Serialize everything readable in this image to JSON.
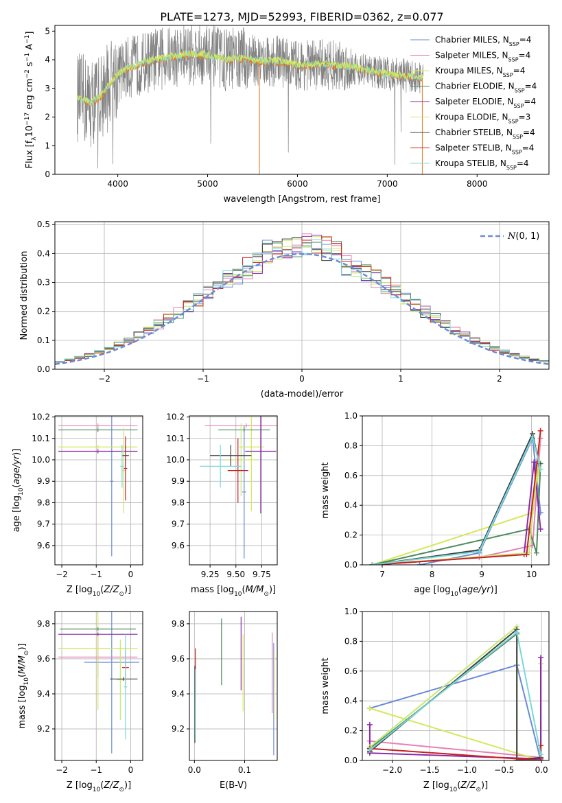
{
  "figure": {
    "title": "PLATE=1273, MJD=52993, FIBERID=0362, z=0.077"
  },
  "series_names": [
    "Chabrier MILES, N$_{SSP}$=4",
    "Salpeter MILES, N$_{SSP}$=4",
    "Kroupa MILES, N$_{SSP}$=4",
    "Chabrier ELODIE, N$_{SSP}$=4",
    "Salpeter ELODIE, N$_{SSP}$=4",
    "Kroupa ELODIE, N$_{SSP}$=3",
    "Chabrier STELIB, N$_{SSP}$=4",
    "Salpeter STELIB, N$_{SSP}$=4",
    "Kroupa STELIB, N$_{SSP}$=4"
  ],
  "legend_labels": [
    {
      "pre": "Chabrier MILES, N",
      "sub": "SSP",
      "post": "=4"
    },
    {
      "pre": "Salpeter MILES, N",
      "sub": "SSP",
      "post": "=4"
    },
    {
      "pre": "Kroupa MILES, N",
      "sub": "SSP",
      "post": "=4"
    },
    {
      "pre": "Chabrier ELODIE, N",
      "sub": "SSP",
      "post": "=4"
    },
    {
      "pre": "Salpeter ELODIE, N",
      "sub": "SSP",
      "post": "=4"
    },
    {
      "pre": "Kroupa ELODIE, N",
      "sub": "SSP",
      "post": "=3"
    },
    {
      "pre": "Chabrier STELIB, N",
      "sub": "SSP",
      "post": "=4"
    },
    {
      "pre": "Salpeter STELIB, N",
      "sub": "SSP",
      "post": "=4"
    },
    {
      "pre": "Kroupa STELIB, N",
      "sub": "SSP",
      "post": "=4"
    }
  ],
  "series_colors": [
    "#6a8ad8",
    "#e87fb4",
    "#d4e85a",
    "#4a8a5a",
    "#8a28a8",
    "#c8e870",
    "#404040",
    "#c82020",
    "#7ad8d8"
  ],
  "chart_data": [
    {
      "id": "spectrum",
      "type": "line",
      "xlabel": "wavelength [Angstrom, rest frame]",
      "ylabel": "Flux [f_λ 10^-17 erg cm^-2 s^-1 A^-1]",
      "xlim": [
        3300,
        8800
      ],
      "ylim": [
        0,
        5.2
      ],
      "xticks": [
        4000,
        5000,
        6000,
        7000,
        8000
      ],
      "yticks": [
        0,
        1,
        2,
        3,
        4,
        5
      ],
      "legend": "upper right",
      "data_color": "#808080",
      "model_colors": [
        "#e87820",
        "#7ad8d8",
        "#d4e85a"
      ],
      "continuum_points": [
        [
          3550,
          2.7
        ],
        [
          3700,
          2.5
        ],
        [
          3800,
          2.7
        ],
        [
          3950,
          3.3
        ],
        [
          4000,
          3.5
        ],
        [
          4100,
          3.7
        ],
        [
          4200,
          3.8
        ],
        [
          4400,
          4.0
        ],
        [
          4600,
          4.1
        ],
        [
          4800,
          4.2
        ],
        [
          5000,
          4.15
        ],
        [
          5200,
          4.0
        ],
        [
          5400,
          4.05
        ],
        [
          5600,
          3.95
        ],
        [
          5800,
          3.95
        ],
        [
          6000,
          3.8
        ],
        [
          6300,
          3.85
        ],
        [
          6600,
          3.75
        ],
        [
          6800,
          3.6
        ],
        [
          7000,
          3.5
        ],
        [
          7200,
          3.45
        ],
        [
          7400,
          3.35
        ]
      ]
    },
    {
      "id": "residuals",
      "type": "bar",
      "xlabel": "(data-model)/error",
      "ylabel": "Normed distribution",
      "xlim": [
        -2.5,
        2.5
      ],
      "ylim": [
        0,
        0.51
      ],
      "xticks": [
        -2,
        -1,
        0,
        1,
        2
      ],
      "yticks": [
        0.0,
        0.1,
        0.2,
        0.3,
        0.4,
        0.5
      ],
      "bin_width": 0.1,
      "legend_label": "N(0,1)",
      "legend_label_script": "N",
      "legend_label_args": "(0, 1)",
      "legend": "upper right",
      "gaussian": {
        "mean": 0,
        "sigma": 1
      }
    },
    {
      "id": "age_vs_Z",
      "type": "scatter",
      "xlabel": "Z [log10(Z/Zsun)]",
      "ylabel": "age [log10(age/yr)]",
      "xlim": [
        -2.2,
        0.35
      ],
      "ylim": [
        9.51,
        10.205
      ],
      "xticks": [
        -2,
        -1,
        0
      ],
      "yticks": [
        9.6,
        9.7,
        9.8,
        9.9,
        10.0,
        10.1,
        10.2
      ],
      "errorbars": [
        {
          "x": -0.55,
          "xerr": 0.05,
          "y": 9.9,
          "yerr": 0.35
        },
        {
          "x": -0.95,
          "xerr": 1.15,
          "y": 10.16,
          "yerr": 0.01
        },
        {
          "x": -0.95,
          "xerr": 1.15,
          "y": 10.06,
          "yerr": 0.01
        },
        {
          "x": -0.95,
          "xerr": 1.15,
          "y": 10.14,
          "yerr": 0.01
        },
        {
          "x": -0.95,
          "xerr": 1.15,
          "y": 10.04,
          "yerr": 0.01
        },
        {
          "x": -0.2,
          "xerr": 0.05,
          "y": 9.95,
          "yerr": 0.2
        },
        {
          "x": -0.15,
          "xerr": 0.1,
          "y": 10.02,
          "yerr": 0.05
        },
        {
          "x": -0.15,
          "xerr": 0.05,
          "y": 9.96,
          "yerr": 0.15
        },
        {
          "x": -0.25,
          "xerr": 0.05,
          "y": 9.97,
          "yerr": 0.1
        }
      ]
    },
    {
      "id": "age_vs_mass",
      "type": "scatter",
      "xlabel": "mass [log10(M/Msun)]",
      "ylabel": "",
      "xlim": [
        9.05,
        9.9
      ],
      "ylim": [
        9.51,
        10.205
      ],
      "xticks": [
        9.25,
        9.5,
        9.75
      ],
      "xticklabels": [
        "9.25",
        "9.50",
        "9.75"
      ],
      "yticks": [
        9.6,
        9.7,
        9.8,
        9.9,
        10.0,
        10.1,
        10.2
      ],
      "errorbars": [
        {
          "x": 9.58,
          "xerr": 0.02,
          "y": 9.85,
          "yerr": 0.31
        },
        {
          "x": 9.6,
          "xerr": 0.4,
          "y": 10.16,
          "yerr": 0.01
        },
        {
          "x": 9.65,
          "xerr": 0.12,
          "y": 10.06,
          "yerr": 0.3
        },
        {
          "x": 9.58,
          "xerr": 0.25,
          "y": 10.14,
          "yerr": 0.01
        },
        {
          "x": 9.74,
          "xerr": 0.15,
          "y": 10.04,
          "yerr": 0.29
        },
        {
          "x": 9.55,
          "xerr": 0.15,
          "y": 10.0,
          "yerr": 0.17
        },
        {
          "x": 9.45,
          "xerr": 0.2,
          "y": 10.02,
          "yerr": 0.05
        },
        {
          "x": 9.52,
          "xerr": 0.1,
          "y": 9.95,
          "yerr": 0.15
        },
        {
          "x": 9.35,
          "xerr": 0.2,
          "y": 9.97,
          "yerr": 0.1
        }
      ]
    },
    {
      "id": "weight_vs_age",
      "type": "line",
      "xlabel": "age [log10(age/yr)]",
      "ylabel": "mass weight",
      "xlim": [
        6.6,
        10.35
      ],
      "ylim": [
        0,
        1.0
      ],
      "xticks": [
        7,
        8,
        9,
        10
      ],
      "yticks": [
        0.0,
        0.2,
        0.4,
        0.6,
        0.8,
        1.0
      ],
      "series": [
        {
          "points": [
            [
              7.75,
              0.0
            ],
            [
              8.95,
              0.08
            ],
            [
              10.02,
              0.85
            ],
            [
              10.18,
              0.35
            ]
          ]
        },
        {
          "points": [
            [
              6.8,
              0.0
            ],
            [
              8.95,
              0.05
            ],
            [
              10.02,
              0.13
            ],
            [
              10.18,
              0.85
            ]
          ]
        },
        {
          "points": [
            [
              6.8,
              0.0
            ],
            [
              10.02,
              0.35
            ],
            [
              10.15,
              0.65
            ]
          ]
        },
        {
          "points": [
            [
              6.8,
              0.0
            ],
            [
              9.95,
              0.24
            ],
            [
              10.1,
              0.08
            ],
            [
              10.18,
              0.68
            ]
          ]
        },
        {
          "points": [
            [
              6.8,
              0.0
            ],
            [
              9.85,
              0.07
            ],
            [
              10.05,
              0.69
            ],
            [
              10.18,
              0.24
            ]
          ]
        },
        {
          "points": [
            [
              6.8,
              0.0
            ],
            [
              9.95,
              0.08
            ],
            [
              10.18,
              0.9
            ]
          ]
        },
        {
          "points": [
            [
              6.8,
              0.0
            ],
            [
              8.95,
              0.1
            ],
            [
              10.02,
              0.88
            ],
            [
              10.15,
              0.68
            ]
          ]
        },
        {
          "points": [
            [
              6.8,
              0.0
            ],
            [
              9.9,
              0.07
            ],
            [
              10.18,
              0.9
            ]
          ]
        },
        {
          "points": [
            [
              6.8,
              0.0
            ],
            [
              8.95,
              0.09
            ],
            [
              10.02,
              0.86
            ],
            [
              10.18,
              0.64
            ]
          ]
        }
      ]
    },
    {
      "id": "mass_vs_Z",
      "type": "scatter",
      "xlabel": "Z [log10(Z/Zsun)]",
      "ylabel": "mass [log10(M/Msun)]",
      "xlim": [
        -2.2,
        0.35
      ],
      "ylim": [
        9.02,
        9.87
      ],
      "xticks": [
        -2,
        -1,
        0
      ],
      "yticks": [
        9.2,
        9.4,
        9.6,
        9.8
      ],
      "errorbars": [
        {
          "x": -0.55,
          "xerr": 0.8,
          "y": 9.58,
          "yerr": 0.52
        },
        {
          "x": -0.95,
          "xerr": 1.15,
          "y": 9.61,
          "yerr": 0.12
        },
        {
          "x": -0.95,
          "xerr": 1.15,
          "y": 9.66,
          "yerr": 0.35
        },
        {
          "x": -0.95,
          "xerr": 1.1,
          "y": 9.77,
          "yerr": 0.01
        },
        {
          "x": -0.95,
          "xerr": 1.15,
          "y": 9.74,
          "yerr": 0.01
        },
        {
          "x": -0.3,
          "xerr": 0.1,
          "y": 9.48,
          "yerr": 0.23
        },
        {
          "x": -0.2,
          "xerr": 0.4,
          "y": 9.485,
          "yerr": 0.01
        },
        {
          "x": -0.15,
          "xerr": 0.1,
          "y": 9.55,
          "yerr": 0.1
        },
        {
          "x": -0.15,
          "xerr": 0.05,
          "y": 9.44,
          "yerr": 0.3
        }
      ]
    },
    {
      "id": "mass_vs_ebv",
      "type": "scatter",
      "xlabel": "E(B-V)",
      "ylabel": "",
      "xlim": [
        -0.01,
        0.165
      ],
      "ylim": [
        9.02,
        9.87
      ],
      "xticks": [
        0.0,
        0.1
      ],
      "xticklabels": [
        "0.0",
        "0.1"
      ],
      "yticks": [
        9.2,
        9.4,
        9.6,
        9.8
      ],
      "errorbars": [
        {
          "x": 0.158,
          "y": 9.37,
          "yerr": 0.32
        },
        {
          "x": 0.155,
          "y": 9.52,
          "yerr": 0.23
        },
        {
          "x": 0.097,
          "y": 9.52,
          "yerr": 0.22
        },
        {
          "x": 0.054,
          "y": 9.64,
          "yerr": 0.19
        },
        {
          "x": 0.093,
          "y": 9.63,
          "yerr": 0.21
        },
        {
          "x": 0.159,
          "y": 9.45,
          "yerr": 0.2
        },
        {
          "x": 0.001,
          "y": 9.34,
          "yerr": 0.22
        },
        {
          "x": 0.002,
          "y": 9.52,
          "yerr": 0.14
        },
        {
          "x": 0.002,
          "y": 9.34,
          "yerr": 0.2
        }
      ]
    },
    {
      "id": "weight_vs_Z",
      "type": "line",
      "xlabel": "Z [log10(Z/Zsun)]",
      "ylabel": "mass weight",
      "xlim": [
        -2.4,
        0.1
      ],
      "ylim": [
        0,
        1.0
      ],
      "xticks": [
        -2.0,
        -1.5,
        -1.0,
        -0.5,
        0.0
      ],
      "xticklabels": [
        "−2.0",
        "−1.5",
        "−1.0",
        "−0.5",
        "0.0"
      ],
      "yticks": [
        0.0,
        0.2,
        0.4,
        0.6,
        0.8,
        1.0
      ],
      "series": [
        {
          "points": [
            [
              -2.3,
              0.35
            ],
            [
              -0.33,
              0.64
            ],
            [
              -0.01,
              0.0
            ]
          ]
        },
        {
          "points": [
            [
              -2.3,
              0.13
            ],
            [
              -0.01,
              0.02
            ]
          ]
        },
        {
          "points": [
            [
              -2.3,
              0.35
            ],
            [
              -0.01,
              0.0
            ],
            [
              -0.01,
              0.65
            ]
          ]
        },
        {
          "points": [
            [
              -2.3,
              0.08
            ],
            [
              -0.33,
              0.85
            ],
            [
              -0.33,
              0.0
            ]
          ]
        },
        {
          "points": [
            [
              -2.3,
              0.24
            ],
            [
              -2.3,
              0.05
            ],
            [
              -0.01,
              0.01
            ],
            [
              -0.01,
              0.69
            ]
          ]
        },
        {
          "points": [
            [
              -2.3,
              0.09
            ],
            [
              -0.33,
              0.9
            ],
            [
              -0.33,
              0.0
            ]
          ]
        },
        {
          "points": [
            [
              -2.3,
              0.06
            ],
            [
              -0.33,
              0.88
            ],
            [
              -0.33,
              0.0
            ],
            [
              -0.01,
              0.02
            ]
          ]
        },
        {
          "points": [
            [
              -2.3,
              0.08
            ],
            [
              -0.01,
              0.0
            ],
            [
              -0.01,
              0.1
            ]
          ]
        },
        {
          "points": [
            [
              -2.3,
              0.07
            ],
            [
              -0.33,
              0.86
            ],
            [
              -0.01,
              0.04
            ]
          ]
        }
      ]
    }
  ]
}
